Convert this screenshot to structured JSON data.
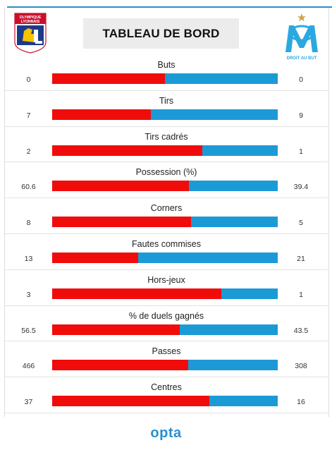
{
  "title": "TABLEAU DE BORD",
  "home_logo_text": [
    "OLYMPIQUE",
    "LYONNAIS"
  ],
  "away_logo_text": "DROIT AU BUT",
  "footer_brand": "opta",
  "colors": {
    "home": "#f10c0c",
    "away": "#1c9ad6",
    "accent": "#2a8fd0"
  },
  "stats": [
    {
      "label": "Buts",
      "home": "0",
      "away": "0",
      "home_share": 0.5
    },
    {
      "label": "Tirs",
      "home": "7",
      "away": "9",
      "home_share": 0.4375
    },
    {
      "label": "Tirs cadrés",
      "home": "2",
      "away": "1",
      "home_share": 0.667
    },
    {
      "label": "Possession (%)",
      "home": "60.6",
      "away": "39.4",
      "home_share": 0.606
    },
    {
      "label": "Corners",
      "home": "8",
      "away": "5",
      "home_share": 0.615
    },
    {
      "label": "Fautes commises",
      "home": "13",
      "away": "21",
      "home_share": 0.382
    },
    {
      "label": "Hors-jeux",
      "home": "3",
      "away": "1",
      "home_share": 0.75
    },
    {
      "label": "% de duels gagnés",
      "home": "56.5",
      "away": "43.5",
      "home_share": 0.565
    },
    {
      "label": "Passes",
      "home": "466",
      "away": "308",
      "home_share": 0.602
    },
    {
      "label": "Centres",
      "home": "37",
      "away": "16",
      "home_share": 0.698
    }
  ]
}
